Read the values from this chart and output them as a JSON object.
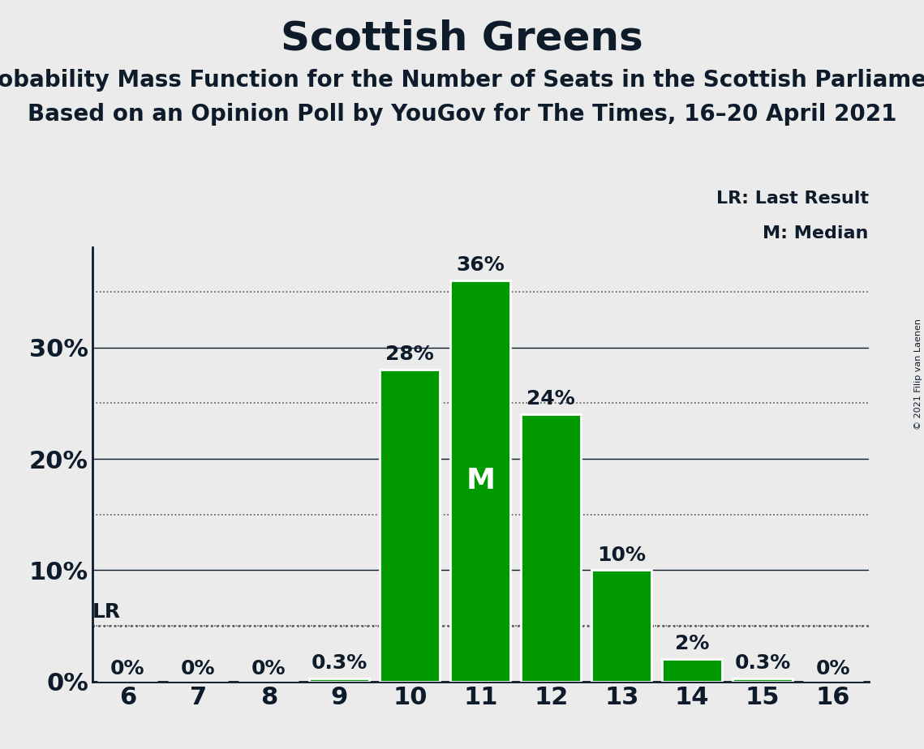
{
  "title": "Scottish Greens",
  "subtitle1": "Probability Mass Function for the Number of Seats in the Scottish Parliament",
  "subtitle2": "Based on an Opinion Poll by YouGov for The Times, 16–20 April 2021",
  "copyright": "© 2021 Filip van Laenen",
  "categories": [
    6,
    7,
    8,
    9,
    10,
    11,
    12,
    13,
    14,
    15,
    16
  ],
  "values": [
    0.0,
    0.0,
    0.0,
    0.3,
    28.0,
    36.0,
    24.0,
    10.0,
    2.0,
    0.3,
    0.0
  ],
  "bar_color": "#009900",
  "median_seat": 11,
  "last_result": 5.0,
  "background_color": "#ebebeb",
  "title_color": "#0d1b2a",
  "label_color_outside": "#0d1b2a",
  "label_color_inside": "#ffffff",
  "ytick_labels": [
    "0%",
    "10%",
    "20%",
    "30%"
  ],
  "ytick_values": [
    0,
    10,
    20,
    30
  ],
  "ylim": [
    0,
    39
  ],
  "dotted_line_color": "#555555",
  "solid_line_color": "#0d1b2a",
  "legend_lr": "LR: Last Result",
  "legend_m": "M: Median",
  "m_label_fontsize": 26,
  "value_label_fontsize": 18,
  "axis_tick_fontsize": 22,
  "title_fontsize": 36,
  "subtitle_fontsize": 20,
  "legend_fontsize": 16
}
